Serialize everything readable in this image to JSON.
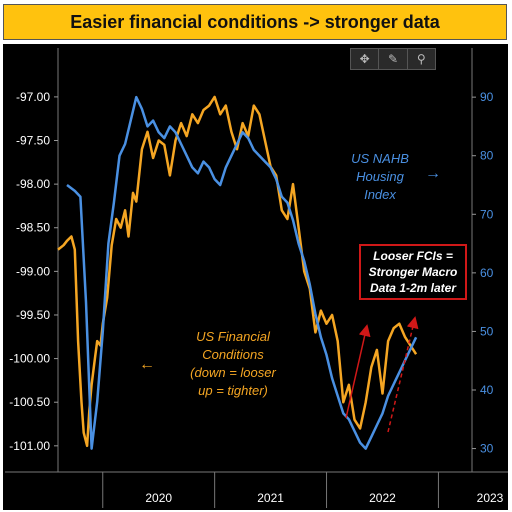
{
  "banner": {
    "title": "Easier financial conditions -> stronger data",
    "background": "#ffc20e"
  },
  "toolbar": {
    "icons": [
      "crosshair-icon",
      "pencil-icon",
      "search-icon"
    ],
    "glyphs": [
      "✥",
      "✎",
      "⚲"
    ]
  },
  "colors": {
    "background": "#000000",
    "fci": "#f5a623",
    "nahb": "#4a90e2",
    "right_axis": "#4a90e2",
    "callout_border": "#d01818",
    "arrows": "#d01818"
  },
  "annotations": {
    "fci": "US Financial\nConditions\n(down = looser\nup = tighter)",
    "nahb": "US NAHB\nHousing\nIndex",
    "callout": "Looser FCIs =\nStronger Macro\nData 1-2m later",
    "fci_arrow": "←",
    "nahb_arrow": "→"
  },
  "chart_data": {
    "type": "line",
    "title": "Easier financial conditions -> stronger data",
    "xlabel": "",
    "ylabel": "",
    "x_ticks": [
      "2020",
      "2021",
      "2022",
      "2023"
    ],
    "x_range": [
      2019.6,
      2023.3
    ],
    "left_axis": {
      "ticks": [
        "-97.00",
        "-97.50",
        "-98.00",
        "-98.50",
        "-99.00",
        "-99.50",
        "-100.00",
        "-100.50",
        "-101.00"
      ],
      "ylim": [
        -101.3,
        -96.6
      ],
      "inverted": true
    },
    "right_axis": {
      "ticks": [
        "90",
        "80",
        "70",
        "60",
        "50",
        "40",
        "30"
      ],
      "ylim": [
        26,
        96
      ]
    },
    "legend": "none",
    "grid": false,
    "series": [
      {
        "name": "US Financial Conditions",
        "axis": "left",
        "x": [
          2019.6,
          2019.65,
          2019.68,
          2019.72,
          2019.75,
          2019.78,
          2019.81,
          2019.83,
          2019.86,
          2019.88,
          2019.9,
          2019.93,
          2019.95,
          2019.98,
          2020.0,
          2020.04,
          2020.08,
          2020.12,
          2020.16,
          2020.2,
          2020.23,
          2020.27,
          2020.3,
          2020.35,
          2020.4,
          2020.45,
          2020.5,
          2020.55,
          2020.6,
          2020.65,
          2020.7,
          2020.75,
          2020.8,
          2020.85,
          2020.9,
          2020.95,
          2021.0,
          2021.05,
          2021.1,
          2021.15,
          2021.2,
          2021.25,
          2021.3,
          2021.35,
          2021.4,
          2021.45,
          2021.5,
          2021.55,
          2021.6,
          2021.65,
          2021.7,
          2021.75,
          2021.8,
          2021.85,
          2021.9,
          2021.95,
          2022.0,
          2022.05,
          2022.1,
          2022.15,
          2022.2,
          2022.25,
          2022.3,
          2022.35,
          2022.4,
          2022.45,
          2022.5,
          2022.55,
          2022.6,
          2022.65,
          2022.7,
          2022.75,
          2022.8
        ],
        "y": [
          -98.75,
          -98.7,
          -98.65,
          -98.6,
          -98.75,
          -99.8,
          -100.5,
          -100.85,
          -101.0,
          -100.6,
          -100.3,
          -100.0,
          -99.8,
          -99.85,
          -99.6,
          -99.3,
          -98.7,
          -98.4,
          -98.5,
          -98.3,
          -98.6,
          -98.1,
          -98.2,
          -97.6,
          -97.4,
          -97.7,
          -97.5,
          -97.55,
          -97.9,
          -97.5,
          -97.3,
          -97.45,
          -97.2,
          -97.3,
          -97.15,
          -97.1,
          -97.0,
          -97.2,
          -97.1,
          -97.4,
          -97.6,
          -97.3,
          -97.45,
          -97.1,
          -97.2,
          -97.5,
          -97.8,
          -97.9,
          -98.3,
          -98.4,
          -98.0,
          -98.5,
          -99.0,
          -99.2,
          -99.7,
          -99.45,
          -99.6,
          -99.5,
          -99.8,
          -100.5,
          -100.3,
          -100.7,
          -100.8,
          -100.5,
          -100.1,
          -99.9,
          -100.4,
          -99.8,
          -99.65,
          -99.6,
          -99.75,
          -99.85,
          -99.95
        ]
      },
      {
        "name": "US NAHB Housing Index",
        "axis": "right",
        "x": [
          2019.68,
          2019.75,
          2019.8,
          2019.85,
          2019.9,
          2019.95,
          2020.0,
          2020.05,
          2020.1,
          2020.15,
          2020.2,
          2020.25,
          2020.3,
          2020.35,
          2020.4,
          2020.45,
          2020.5,
          2020.55,
          2020.6,
          2020.65,
          2020.7,
          2020.75,
          2020.8,
          2020.85,
          2020.9,
          2020.95,
          2021.0,
          2021.05,
          2021.1,
          2021.15,
          2021.2,
          2021.25,
          2021.3,
          2021.35,
          2021.4,
          2021.45,
          2021.5,
          2021.55,
          2021.6,
          2021.65,
          2021.7,
          2021.75,
          2021.8,
          2021.85,
          2021.9,
          2021.95,
          2022.0,
          2022.05,
          2022.1,
          2022.15,
          2022.2,
          2022.25,
          2022.3,
          2022.35,
          2022.4,
          2022.45,
          2022.5,
          2022.55,
          2022.6,
          2022.65,
          2022.7,
          2022.75,
          2022.8
        ],
        "y": [
          75,
          74,
          73,
          55,
          30,
          38,
          50,
          65,
          72,
          80,
          82,
          86,
          90,
          88,
          85,
          86,
          84,
          83,
          85,
          84,
          82,
          80,
          78,
          77,
          79,
          78,
          76,
          75,
          78,
          80,
          82,
          84,
          83,
          81,
          80,
          79,
          78,
          76,
          73,
          72,
          69,
          65,
          62,
          58,
          53,
          49,
          46,
          42,
          39,
          36,
          35,
          33,
          31,
          30,
          32,
          34,
          36,
          39,
          41,
          43,
          45,
          47,
          49
        ]
      }
    ]
  }
}
